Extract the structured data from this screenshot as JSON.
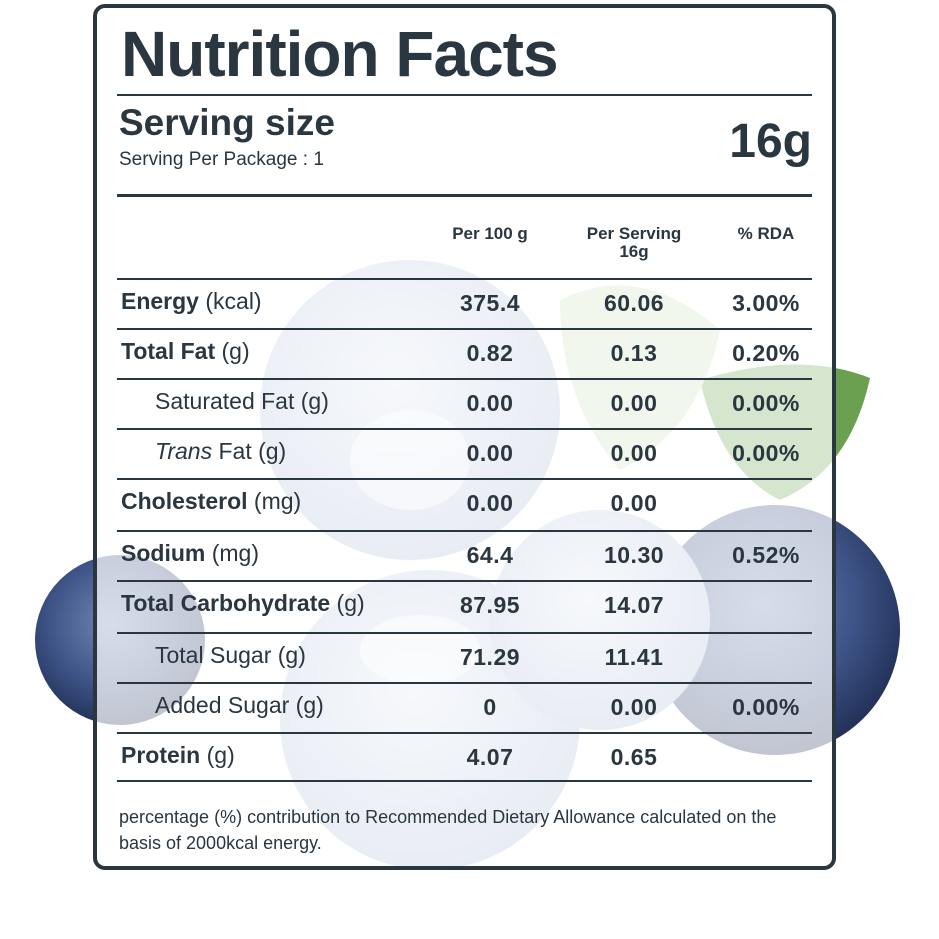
{
  "header": {
    "title": "Nutrition Facts",
    "serving_label": "Serving size",
    "serving_value": "16g",
    "per_package": "Serving Per Package : 1"
  },
  "columns": {
    "per100": "Per 100 g",
    "per_serving_1": "Per Serving",
    "per_serving_2": "16g",
    "rda": "% RDA"
  },
  "rows": [
    {
      "bold": "Energy",
      "unit": " (kcal)",
      "per100": "375.4",
      "serving": "60.06",
      "rda": "3.00%"
    },
    {
      "bold": "Total Fat",
      "unit": " (g)",
      "per100": "0.82",
      "serving": "0.13",
      "rda": "0.20%"
    },
    {
      "plain": "Saturated Fat (g)",
      "per100": "0.00",
      "serving": "0.00",
      "rda": "0.00%"
    },
    {
      "italic": "Trans",
      "unit": " Fat (g)",
      "per100": "0.00",
      "serving": "0.00",
      "rda": "0.00%"
    },
    {
      "bold": "Cholesterol",
      "unit": " (mg)",
      "per100": "0.00",
      "serving": "0.00",
      "rda": ""
    },
    {
      "bold": "Sodium",
      "unit": " (mg)",
      "per100": "64.4",
      "serving": "10.30",
      "rda": "0.52%"
    },
    {
      "bold": "Total Carbohydrate",
      "unit": " (g)",
      "per100": "87.95",
      "serving": "14.07",
      "rda": ""
    },
    {
      "plain": "Total Sugar (g)",
      "per100": "71.29",
      "serving": "11.41",
      "rda": ""
    },
    {
      "plain": "Added Sugar (g)",
      "per100": "0",
      "serving": "0.00",
      "rda": "0.00%"
    },
    {
      "bold": "Protein",
      "unit": " (g)",
      "per100": "4.07",
      "serving": "0.65",
      "rda": ""
    }
  ],
  "footnote": "percentage (%) contribution to Recommended Dietary Allowance calculated on the basis of 2000kcal energy.",
  "colors": {
    "ink": "#2a3640",
    "berry": "#4a5f8f",
    "leaf": "#7aa85a"
  }
}
